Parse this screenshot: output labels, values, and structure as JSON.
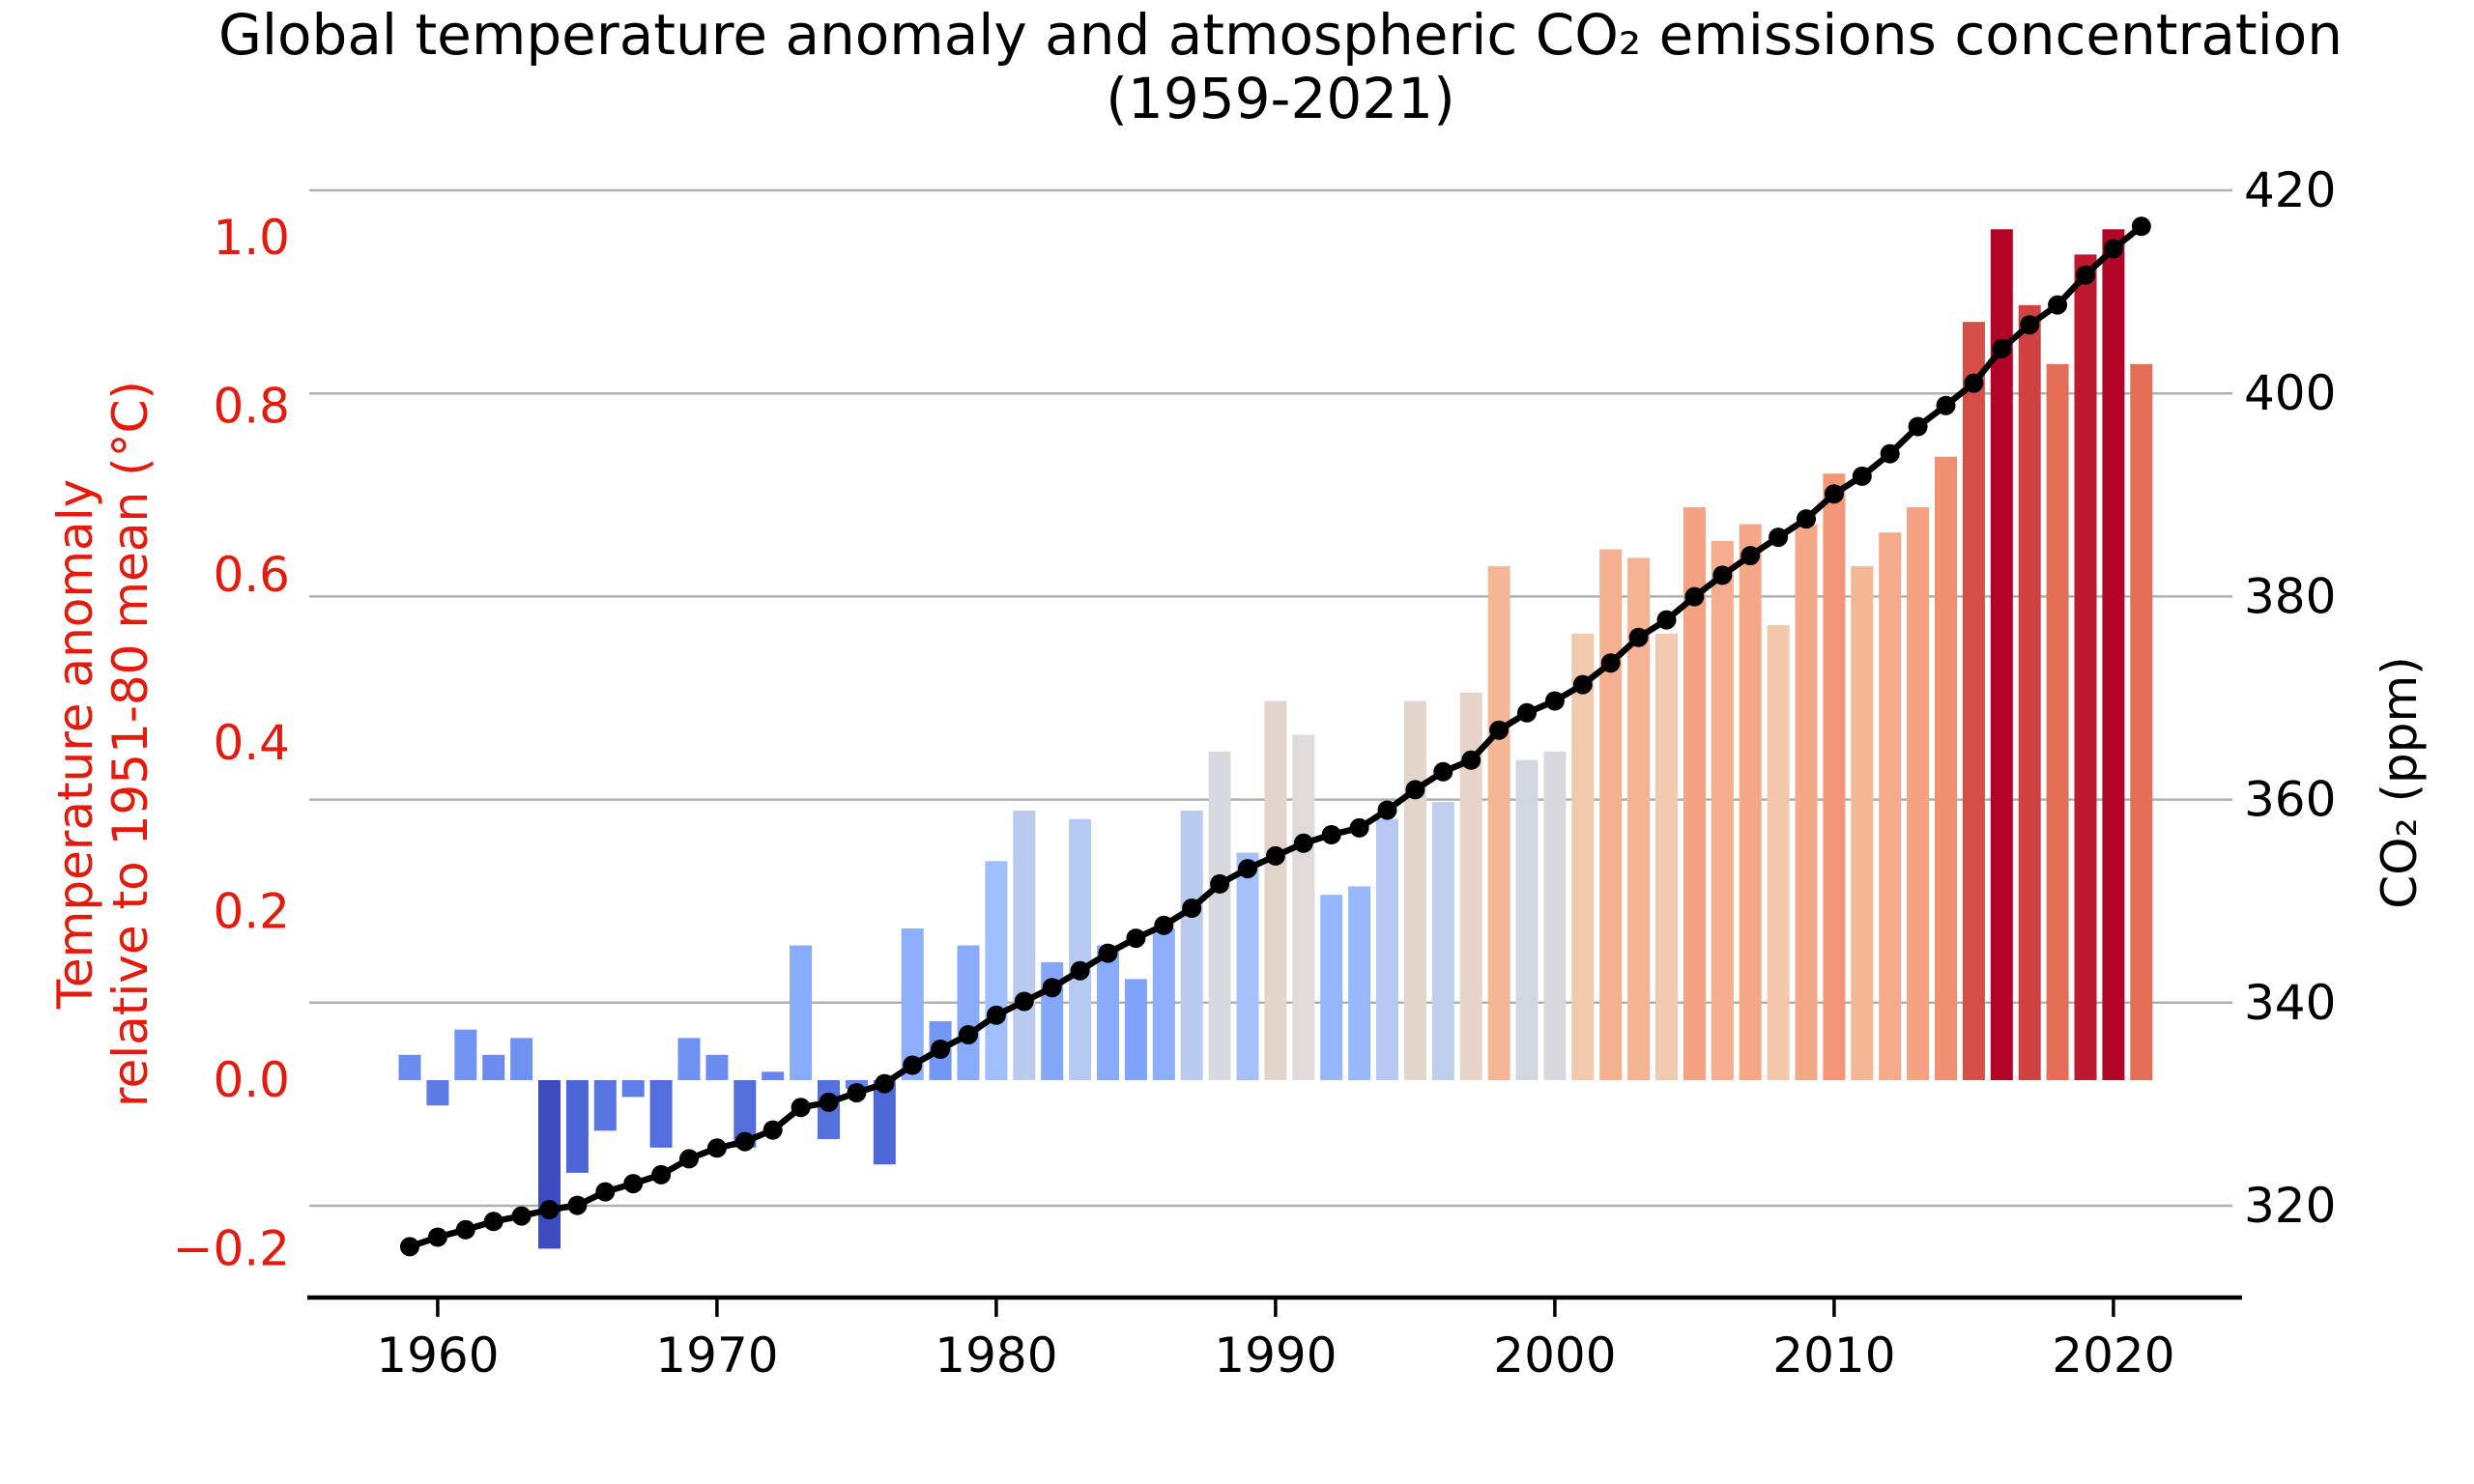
{
  "title": {
    "line1": "Global temperature anomaly and atmospheric CO₂ emissions concentration",
    "line2": "(1959-2021)"
  },
  "left_axis": {
    "label_line1": "Temperature anomaly",
    "label_line2": "relative to 1951-80 mean (°C)",
    "ticks": [
      "1.0",
      "0.8",
      "0.6",
      "0.4",
      "0.2",
      "0.0",
      "−0.2"
    ],
    "tick_values": [
      1.0,
      0.8,
      0.6,
      0.4,
      0.2,
      0.0,
      -0.2
    ],
    "color": "#e31a0c"
  },
  "right_axis": {
    "label": "CO₂ (ppm)",
    "ticks": [
      "420",
      "400",
      "380",
      "360",
      "340",
      "320"
    ],
    "tick_values": [
      420,
      400,
      380,
      360,
      340,
      320
    ],
    "color": "#000000"
  },
  "x_axis": {
    "ticks": [
      "1960",
      "1970",
      "1980",
      "1990",
      "2000",
      "2010",
      "2020"
    ],
    "tick_values": [
      1960,
      1970,
      1980,
      1990,
      2000,
      2010,
      2020
    ]
  },
  "style": {
    "background": "#ffffff",
    "grid_color": "#b0b0b0",
    "spine_color": "#000000",
    "line_color": "#000000",
    "marker_color": "#000000",
    "colormap": {
      "name": "coolwarm",
      "vmin": -0.2,
      "vmax": 1.01,
      "stops": [
        "#3b4cc0",
        "#5977e3",
        "#7b9ff9",
        "#9ebeff",
        "#dddcdc",
        "#f5c5a4",
        "#f49a7b",
        "#e36b54",
        "#b40426"
      ]
    }
  },
  "chart_data": {
    "type": "combo",
    "title": "Global temperature anomaly and atmospheric CO₂ emissions concentration (1959-2021)",
    "xlabel": "",
    "ylabel_left": "Temperature anomaly relative to 1951-80 mean (°C)",
    "ylabel_right": "CO₂ (ppm)",
    "xlim": [
      1955.4,
      2024.6
    ],
    "ylim_left": [
      -0.26,
      1.06
    ],
    "ylim_right": [
      311,
      420.5
    ],
    "grid": "horizontal-right-axis-ticks",
    "legend": "none",
    "x": [
      1959,
      1960,
      1961,
      1962,
      1963,
      1964,
      1965,
      1966,
      1967,
      1968,
      1969,
      1970,
      1971,
      1972,
      1973,
      1974,
      1975,
      1976,
      1977,
      1978,
      1979,
      1980,
      1981,
      1982,
      1983,
      1984,
      1985,
      1986,
      1987,
      1988,
      1989,
      1990,
      1991,
      1992,
      1993,
      1994,
      1995,
      1996,
      1997,
      1998,
      1999,
      2000,
      2001,
      2002,
      2003,
      2004,
      2005,
      2006,
      2007,
      2008,
      2009,
      2010,
      2011,
      2012,
      2013,
      2014,
      2015,
      2016,
      2017,
      2018,
      2019,
      2020,
      2021
    ],
    "series": [
      {
        "name": "Temperature anomaly (°C)",
        "type": "bar",
        "yaxis": "left",
        "values": [
          0.03,
          -0.03,
          0.06,
          0.03,
          0.05,
          -0.2,
          -0.11,
          -0.06,
          -0.02,
          -0.08,
          0.05,
          0.03,
          -0.08,
          0.01,
          0.16,
          -0.07,
          -0.01,
          -0.1,
          0.18,
          0.07,
          0.16,
          0.26,
          0.32,
          0.14,
          0.31,
          0.16,
          0.12,
          0.18,
          0.32,
          0.39,
          0.27,
          0.45,
          0.41,
          0.22,
          0.23,
          0.31,
          0.45,
          0.33,
          0.46,
          0.61,
          0.38,
          0.39,
          0.53,
          0.63,
          0.62,
          0.53,
          0.68,
          0.64,
          0.66,
          0.54,
          0.66,
          0.72,
          0.61,
          0.65,
          0.68,
          0.74,
          0.9,
          1.01,
          0.92,
          0.85,
          0.98,
          1.01,
          0.85
        ]
      },
      {
        "name": "CO₂ concentration (ppm)",
        "type": "line",
        "yaxis": "right",
        "values": [
          315.97,
          316.91,
          317.64,
          318.45,
          318.99,
          319.62,
          320.04,
          321.37,
          322.18,
          323.05,
          324.62,
          325.68,
          326.32,
          327.46,
          329.68,
          330.19,
          331.12,
          332.03,
          333.84,
          335.41,
          336.84,
          338.76,
          340.12,
          341.48,
          343.15,
          344.87,
          346.35,
          347.61,
          349.31,
          351.69,
          353.2,
          354.45,
          355.7,
          356.54,
          357.21,
          358.96,
          360.97,
          362.74,
          363.88,
          366.84,
          368.54,
          369.71,
          371.32,
          373.45,
          375.98,
          377.7,
          379.98,
          382.09,
          384.02,
          385.83,
          387.64,
          390.1,
          391.85,
          394.06,
          396.74,
          398.81,
          401.01,
          404.41,
          406.76,
          408.72,
          411.66,
          414.24,
          416.45
        ]
      }
    ]
  }
}
